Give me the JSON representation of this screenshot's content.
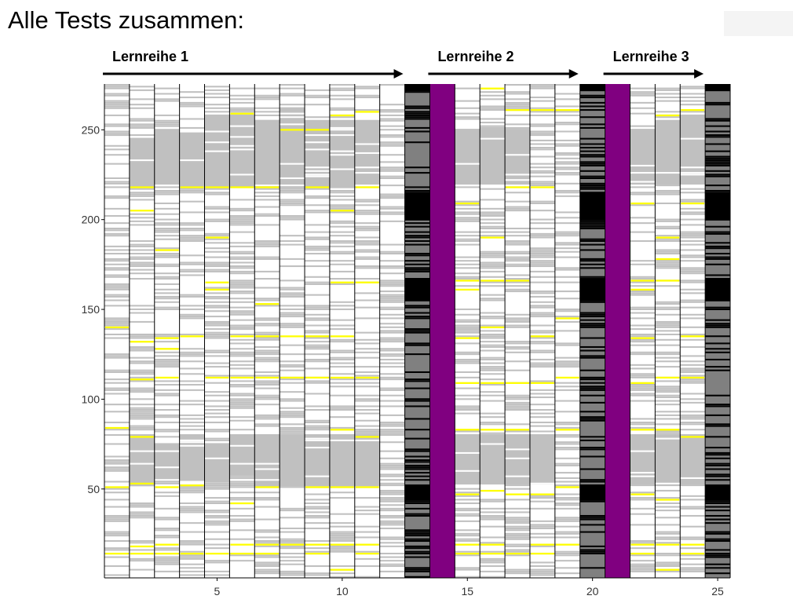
{
  "slide": {
    "title": "Alle Tests zusammen:"
  },
  "chart_data": {
    "type": "heatmap",
    "title": "",
    "xlabel": "",
    "ylabel": "",
    "x_range": [
      1,
      25
    ],
    "y_range": [
      1,
      275
    ],
    "x_ticks": [
      5,
      10,
      15,
      20,
      25
    ],
    "y_ticks": [
      50,
      100,
      150,
      200,
      250
    ],
    "colors": {
      "white": "#ffffff",
      "light_gray": "#c0c0c0",
      "dark_gray": "#808080",
      "black": "#000000",
      "yellow": "#ffff00",
      "purple": "#800080"
    },
    "groups": [
      {
        "label": "Lernreihe 1",
        "from_column": 1,
        "to_column": 12
      },
      {
        "label": "Lernreihe 2",
        "from_column": 14,
        "to_column": 19
      },
      {
        "label": "Lernreihe 3",
        "from_column": 21,
        "to_column": 24
      }
    ],
    "summary_columns": [
      13,
      20,
      25
    ],
    "separator_columns": [
      14,
      21
    ],
    "light_gray_blocks": [
      {
        "column": 2,
        "y_from": 218,
        "y_to": 245
      },
      {
        "column": 3,
        "y_from": 220,
        "y_to": 250
      },
      {
        "column": 4,
        "y_from": 218,
        "y_to": 248
      },
      {
        "column": 5,
        "y_from": 218,
        "y_to": 258
      },
      {
        "column": 6,
        "y_from": 218,
        "y_to": 258
      },
      {
        "column": 7,
        "y_from": 218,
        "y_to": 255
      },
      {
        "column": 8,
        "y_from": 218,
        "y_to": 262
      },
      {
        "column": 9,
        "y_from": 218,
        "y_to": 255
      },
      {
        "column": 10,
        "y_from": 218,
        "y_to": 255
      },
      {
        "column": 11,
        "y_from": 220,
        "y_to": 255
      },
      {
        "column": 2,
        "y_from": 52,
        "y_to": 80
      },
      {
        "column": 3,
        "y_from": 55,
        "y_to": 75
      },
      {
        "column": 4,
        "y_from": 55,
        "y_to": 80
      },
      {
        "column": 5,
        "y_from": 55,
        "y_to": 75
      },
      {
        "column": 6,
        "y_from": 58,
        "y_to": 80
      },
      {
        "column": 7,
        "y_from": 52,
        "y_to": 80
      },
      {
        "column": 8,
        "y_from": 52,
        "y_to": 80
      },
      {
        "column": 9,
        "y_from": 52,
        "y_to": 80
      },
      {
        "column": 10,
        "y_from": 52,
        "y_to": 80
      },
      {
        "column": 11,
        "y_from": 52,
        "y_to": 80
      },
      {
        "column": 15,
        "y_from": 53,
        "y_to": 80
      },
      {
        "column": 16,
        "y_from": 53,
        "y_to": 80
      },
      {
        "column": 17,
        "y_from": 53,
        "y_to": 80
      },
      {
        "column": 18,
        "y_from": 53,
        "y_to": 80
      },
      {
        "column": 22,
        "y_from": 53,
        "y_to": 80
      },
      {
        "column": 23,
        "y_from": 53,
        "y_to": 80
      },
      {
        "column": 24,
        "y_from": 53,
        "y_to": 80
      },
      {
        "column": 15,
        "y_from": 220,
        "y_to": 250
      },
      {
        "column": 16,
        "y_from": 220,
        "y_to": 250
      },
      {
        "column": 17,
        "y_from": 220,
        "y_to": 250
      },
      {
        "column": 22,
        "y_from": 220,
        "y_to": 250
      },
      {
        "column": 23,
        "y_from": 220,
        "y_to": 255
      },
      {
        "column": 24,
        "y_from": 220,
        "y_to": 258
      }
    ],
    "summary_black_rows": [
      {
        "column": 13,
        "y_from": 272,
        "y_to": 275
      },
      {
        "column": 13,
        "y_from": 200,
        "y_to": 215
      },
      {
        "column": 13,
        "y_from": 155,
        "y_to": 167
      },
      {
        "column": 13,
        "y_from": 44,
        "y_to": 52
      },
      {
        "column": 20,
        "y_from": 272,
        "y_to": 275
      },
      {
        "column": 20,
        "y_from": 200,
        "y_to": 215
      },
      {
        "column": 20,
        "y_from": 155,
        "y_to": 167
      },
      {
        "column": 20,
        "y_from": 44,
        "y_to": 52
      },
      {
        "column": 25,
        "y_from": 272,
        "y_to": 275
      },
      {
        "column": 25,
        "y_from": 200,
        "y_to": 215
      },
      {
        "column": 25,
        "y_from": 155,
        "y_to": 167
      },
      {
        "column": 25,
        "y_from": 44,
        "y_to": 52
      }
    ],
    "yellow_rows": [
      {
        "column": 1,
        "y": 140
      },
      {
        "column": 1,
        "y": 84
      },
      {
        "column": 1,
        "y": 51
      },
      {
        "column": 1,
        "y": 14
      },
      {
        "column": 2,
        "y": 218
      },
      {
        "column": 2,
        "y": 205
      },
      {
        "column": 2,
        "y": 132
      },
      {
        "column": 2,
        "y": 111
      },
      {
        "column": 2,
        "y": 79
      },
      {
        "column": 2,
        "y": 53
      },
      {
        "column": 2,
        "y": 18
      },
      {
        "column": 2,
        "y": 14
      },
      {
        "column": 3,
        "y": 183
      },
      {
        "column": 3,
        "y": 134
      },
      {
        "column": 3,
        "y": 128
      },
      {
        "column": 3,
        "y": 112
      },
      {
        "column": 3,
        "y": 51
      },
      {
        "column": 3,
        "y": 19
      },
      {
        "column": 3,
        "y": 14
      },
      {
        "column": 4,
        "y": 218
      },
      {
        "column": 4,
        "y": 135
      },
      {
        "column": 4,
        "y": 52
      },
      {
        "column": 4,
        "y": 14
      },
      {
        "column": 5,
        "y": 218
      },
      {
        "column": 5,
        "y": 190
      },
      {
        "column": 5,
        "y": 165
      },
      {
        "column": 5,
        "y": 161
      },
      {
        "column": 5,
        "y": 112
      },
      {
        "column": 5,
        "y": 14
      },
      {
        "column": 6,
        "y": 259
      },
      {
        "column": 6,
        "y": 218
      },
      {
        "column": 6,
        "y": 135
      },
      {
        "column": 6,
        "y": 112
      },
      {
        "column": 6,
        "y": 42
      },
      {
        "column": 6,
        "y": 19
      },
      {
        "column": 6,
        "y": 14
      },
      {
        "column": 7,
        "y": 218
      },
      {
        "column": 7,
        "y": 153
      },
      {
        "column": 7,
        "y": 135
      },
      {
        "column": 7,
        "y": 112
      },
      {
        "column": 7,
        "y": 51
      },
      {
        "column": 7,
        "y": 19
      },
      {
        "column": 7,
        "y": 14
      },
      {
        "column": 8,
        "y": 250
      },
      {
        "column": 8,
        "y": 135
      },
      {
        "column": 8,
        "y": 112
      },
      {
        "column": 8,
        "y": 19
      },
      {
        "column": 9,
        "y": 250
      },
      {
        "column": 9,
        "y": 218
      },
      {
        "column": 9,
        "y": 135
      },
      {
        "column": 9,
        "y": 112
      },
      {
        "column": 9,
        "y": 51
      },
      {
        "column": 9,
        "y": 19
      },
      {
        "column": 9,
        "y": 14
      },
      {
        "column": 10,
        "y": 258
      },
      {
        "column": 10,
        "y": 205
      },
      {
        "column": 10,
        "y": 165
      },
      {
        "column": 10,
        "y": 135
      },
      {
        "column": 10,
        "y": 112
      },
      {
        "column": 10,
        "y": 83
      },
      {
        "column": 10,
        "y": 51
      },
      {
        "column": 10,
        "y": 19
      },
      {
        "column": 10,
        "y": 5
      },
      {
        "column": 11,
        "y": 260
      },
      {
        "column": 11,
        "y": 218
      },
      {
        "column": 11,
        "y": 165
      },
      {
        "column": 11,
        "y": 112
      },
      {
        "column": 11,
        "y": 79
      },
      {
        "column": 11,
        "y": 51
      },
      {
        "column": 11,
        "y": 19
      },
      {
        "column": 11,
        "y": 14
      },
      {
        "column": 15,
        "y": 209
      },
      {
        "column": 15,
        "y": 166
      },
      {
        "column": 15,
        "y": 161
      },
      {
        "column": 15,
        "y": 134
      },
      {
        "column": 15,
        "y": 109
      },
      {
        "column": 15,
        "y": 83
      },
      {
        "column": 15,
        "y": 47
      },
      {
        "column": 15,
        "y": 19
      },
      {
        "column": 15,
        "y": 14
      },
      {
        "column": 16,
        "y": 273
      },
      {
        "column": 16,
        "y": 190
      },
      {
        "column": 16,
        "y": 166
      },
      {
        "column": 16,
        "y": 140
      },
      {
        "column": 16,
        "y": 109
      },
      {
        "column": 16,
        "y": 83
      },
      {
        "column": 16,
        "y": 49
      },
      {
        "column": 16,
        "y": 19
      },
      {
        "column": 16,
        "y": 14
      },
      {
        "column": 17,
        "y": 261
      },
      {
        "column": 17,
        "y": 218
      },
      {
        "column": 17,
        "y": 166
      },
      {
        "column": 17,
        "y": 109
      },
      {
        "column": 17,
        "y": 83
      },
      {
        "column": 17,
        "y": 47
      },
      {
        "column": 17,
        "y": 14
      },
      {
        "column": 18,
        "y": 261
      },
      {
        "column": 18,
        "y": 218
      },
      {
        "column": 18,
        "y": 135
      },
      {
        "column": 18,
        "y": 109
      },
      {
        "column": 18,
        "y": 47
      },
      {
        "column": 18,
        "y": 19
      },
      {
        "column": 18,
        "y": 14
      },
      {
        "column": 19,
        "y": 261
      },
      {
        "column": 19,
        "y": 145
      },
      {
        "column": 19,
        "y": 112
      },
      {
        "column": 19,
        "y": 83
      },
      {
        "column": 19,
        "y": 51
      },
      {
        "column": 19,
        "y": 19
      },
      {
        "column": 22,
        "y": 209
      },
      {
        "column": 22,
        "y": 166
      },
      {
        "column": 22,
        "y": 161
      },
      {
        "column": 22,
        "y": 134
      },
      {
        "column": 22,
        "y": 109
      },
      {
        "column": 22,
        "y": 83
      },
      {
        "column": 22,
        "y": 47
      },
      {
        "column": 22,
        "y": 19
      },
      {
        "column": 22,
        "y": 14
      },
      {
        "column": 23,
        "y": 258
      },
      {
        "column": 23,
        "y": 190
      },
      {
        "column": 23,
        "y": 178
      },
      {
        "column": 23,
        "y": 166
      },
      {
        "column": 23,
        "y": 112
      },
      {
        "column": 23,
        "y": 83
      },
      {
        "column": 23,
        "y": 44
      },
      {
        "column": 23,
        "y": 19
      },
      {
        "column": 23,
        "y": 5
      },
      {
        "column": 24,
        "y": 261
      },
      {
        "column": 24,
        "y": 209
      },
      {
        "column": 24,
        "y": 135
      },
      {
        "column": 24,
        "y": 112
      },
      {
        "column": 24,
        "y": 79
      },
      {
        "column": 24,
        "y": 19
      },
      {
        "column": 24,
        "y": 14
      }
    ]
  }
}
